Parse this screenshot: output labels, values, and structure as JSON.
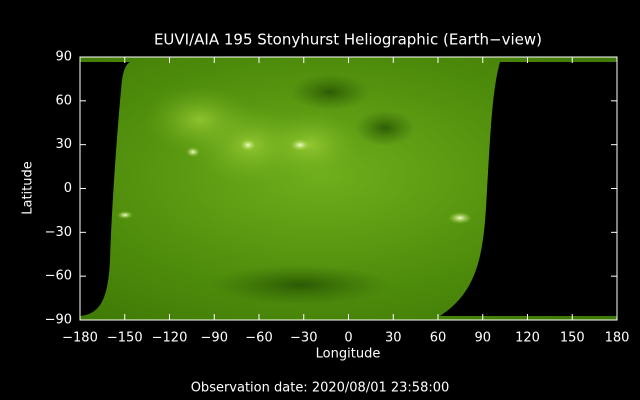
{
  "chart_data": {
    "type": "image",
    "title": "EUVI/AIA 195 Stonyhurst Heliographic (Earth−view)",
    "xlabel": "Longitude",
    "ylabel": "Latitude",
    "caption": "Observation date: 2020/08/01 23:58:00",
    "xlim": [
      -180,
      180
    ],
    "ylim": [
      -90,
      90
    ],
    "xticks": [
      {
        "value": -180,
        "label": "−180"
      },
      {
        "value": -150,
        "label": "−150"
      },
      {
        "value": -120,
        "label": "−120"
      },
      {
        "value": -90,
        "label": "−90"
      },
      {
        "value": -60,
        "label": "−60"
      },
      {
        "value": -30,
        "label": "−30"
      },
      0,
      30,
      60,
      90,
      120,
      150,
      180
    ],
    "yticks": [
      {
        "value": -90,
        "label": "−90"
      },
      {
        "value": -60,
        "label": "−60"
      },
      {
        "value": -30,
        "label": "−30"
      },
      0,
      30,
      60,
      90
    ]
  }
}
